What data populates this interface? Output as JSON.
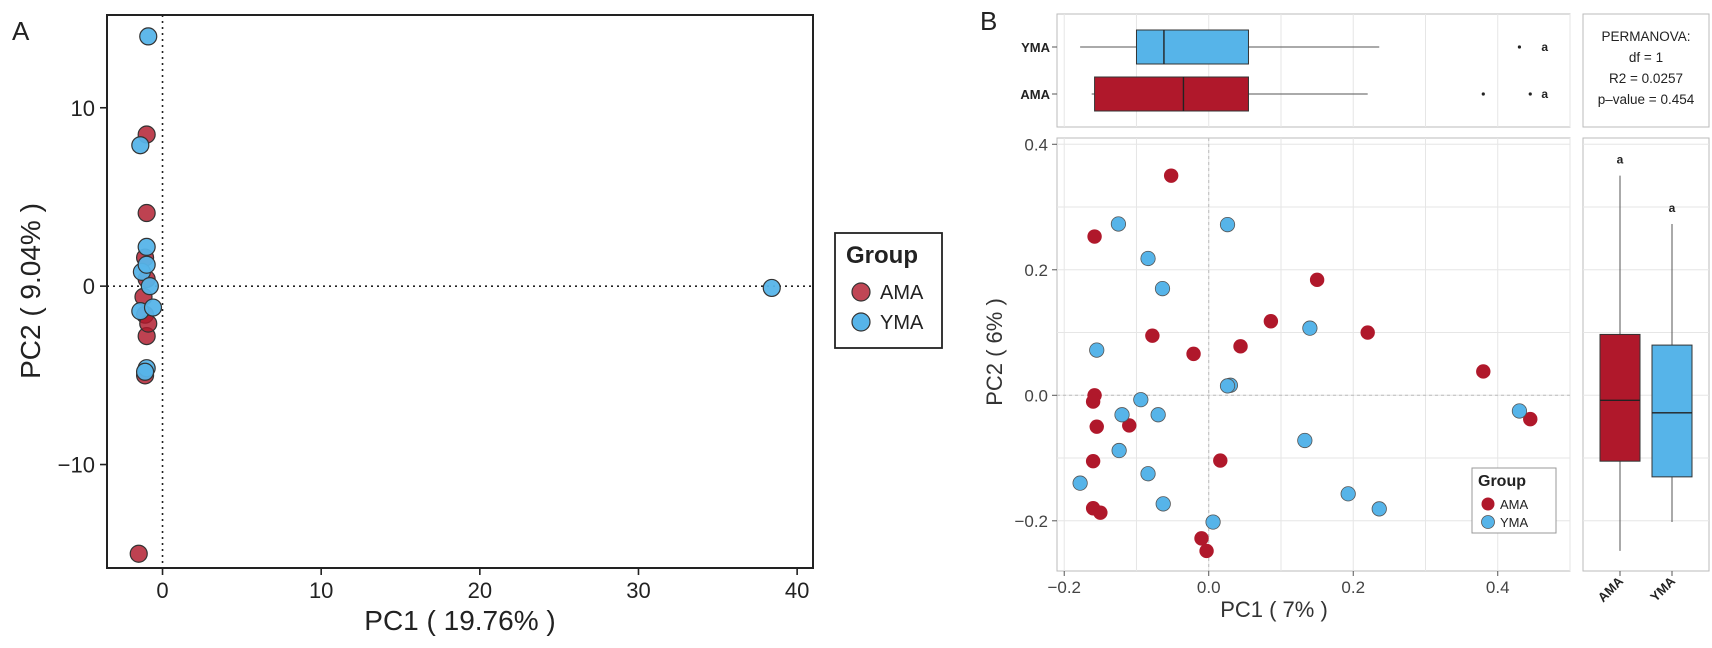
{
  "colors": {
    "AMA": "#b0182b",
    "YMA": "#56b4e9",
    "stroke": "#333333",
    "grid": "#e6e6e6"
  },
  "chart_data": [
    {
      "panel": "A",
      "type": "scatter",
      "xlabel": "PC1 ( 19.76% )",
      "ylabel": "PC2 ( 9.04% )",
      "xlim": [
        -3.5,
        41
      ],
      "ylim": [
        -15.8,
        15.2
      ],
      "xticks": [
        0,
        10,
        20,
        30,
        40
      ],
      "yticks": [
        -10,
        0,
        10
      ],
      "refline_x": 0,
      "refline_y": 0,
      "legend": {
        "title": "Group",
        "items": [
          "AMA",
          "YMA"
        ],
        "position": "right"
      },
      "series": [
        {
          "name": "AMA",
          "points": [
            [
              -1.0,
              8.5
            ],
            [
              -1.0,
              4.1
            ],
            [
              -1.1,
              1.6
            ],
            [
              -1.0,
              0.4
            ],
            [
              -1.2,
              -0.6
            ],
            [
              -1.1,
              -1.6
            ],
            [
              -1.0,
              -2.8
            ],
            [
              -1.1,
              -5.0
            ],
            [
              -1.5,
              -15.0
            ],
            [
              -0.9,
              -2.1
            ]
          ]
        },
        {
          "name": "YMA",
          "points": [
            [
              -0.9,
              14.0
            ],
            [
              -1.4,
              7.9
            ],
            [
              -1.0,
              2.2
            ],
            [
              -1.3,
              0.8
            ],
            [
              -0.8,
              0.0
            ],
            [
              -1.4,
              -1.4
            ],
            [
              -0.6,
              -1.2
            ],
            [
              -1.0,
              -4.6
            ],
            [
              -1.1,
              -4.8
            ],
            [
              38.4,
              -0.1
            ],
            [
              -1.0,
              1.2
            ]
          ]
        }
      ]
    },
    {
      "panel": "B",
      "type": "scatter",
      "xlabel": "PC1 ( 7% )",
      "ylabel": "PC2 ( 6% )",
      "xlim": [
        -0.21,
        0.5
      ],
      "ylim": [
        -0.28,
        0.41
      ],
      "xticks": [
        -0.2,
        0.0,
        0.2,
        0.4
      ],
      "xticklabels": [
        "-0.2",
        "0.0",
        "0.2",
        "0.4"
      ],
      "yticks": [
        -0.2,
        0.0,
        0.2,
        0.4
      ],
      "yticklabels": [
        "-0.2",
        "0.0",
        "0.2",
        "0.4"
      ],
      "refline_x": 0,
      "refline_y": 0,
      "legend": {
        "title": "Group",
        "items": [
          "AMA",
          "YMA"
        ],
        "position": "bottom-right"
      },
      "series": [
        {
          "name": "AMA",
          "points": [
            [
              -0.052,
              0.35
            ],
            [
              -0.158,
              0.253
            ],
            [
              0.15,
              0.184
            ],
            [
              0.086,
              0.118
            ],
            [
              0.22,
              0.1
            ],
            [
              -0.078,
              0.095
            ],
            [
              0.044,
              0.078
            ],
            [
              -0.021,
              0.066
            ],
            [
              0.38,
              0.038
            ],
            [
              -0.158,
              0.0
            ],
            [
              -0.16,
              -0.01
            ],
            [
              -0.155,
              -0.05
            ],
            [
              -0.11,
              -0.048
            ],
            [
              0.445,
              -0.038
            ],
            [
              -0.16,
              -0.105
            ],
            [
              0.016,
              -0.104
            ],
            [
              -0.16,
              -0.18
            ],
            [
              -0.15,
              -0.187
            ],
            [
              -0.01,
              -0.228
            ],
            [
              -0.003,
              -0.248
            ]
          ]
        },
        {
          "name": "YMA",
          "points": [
            [
              -0.125,
              0.273
            ],
            [
              0.026,
              0.272
            ],
            [
              -0.084,
              0.218
            ],
            [
              -0.064,
              0.17
            ],
            [
              0.14,
              0.107
            ],
            [
              -0.155,
              0.072
            ],
            [
              0.03,
              0.016
            ],
            [
              0.026,
              0.015
            ],
            [
              -0.094,
              -0.007
            ],
            [
              -0.12,
              -0.031
            ],
            [
              -0.07,
              -0.031
            ],
            [
              0.43,
              -0.025
            ],
            [
              0.133,
              -0.072
            ],
            [
              -0.124,
              -0.088
            ],
            [
              -0.084,
              -0.125
            ],
            [
              -0.178,
              -0.14
            ],
            [
              0.193,
              -0.157
            ],
            [
              -0.063,
              -0.173
            ],
            [
              0.236,
              -0.181
            ],
            [
              0.006,
              -0.202
            ]
          ]
        }
      ],
      "top_boxplot": {
        "axis": "PC1",
        "groups": [
          {
            "name": "YMA",
            "q1": -0.1,
            "median": -0.062,
            "q3": 0.055,
            "whisker_low": -0.178,
            "whisker_high": 0.236,
            "outliers": [
              0.43
            ],
            "letter": "a"
          },
          {
            "name": "AMA",
            "q1": -0.158,
            "median": -0.035,
            "q3": 0.055,
            "whisker_low": -0.162,
            "whisker_high": 0.22,
            "outliers": [
              0.38,
              0.445
            ],
            "letter": "a"
          }
        ]
      },
      "right_boxplot": {
        "axis": "PC2",
        "groups": [
          {
            "name": "AMA",
            "q1": -0.105,
            "median": -0.008,
            "q3": 0.097,
            "whisker_low": -0.248,
            "whisker_high": 0.35,
            "letter": "a"
          },
          {
            "name": "YMA",
            "q1": -0.13,
            "median": -0.028,
            "q3": 0.08,
            "whisker_low": -0.202,
            "whisker_high": 0.273,
            "letter": "a"
          }
        ]
      },
      "stats": [
        "PERMANOVA:",
        "df = 1",
        "R2 = 0.0257",
        "p–value = 0.454"
      ]
    }
  ]
}
